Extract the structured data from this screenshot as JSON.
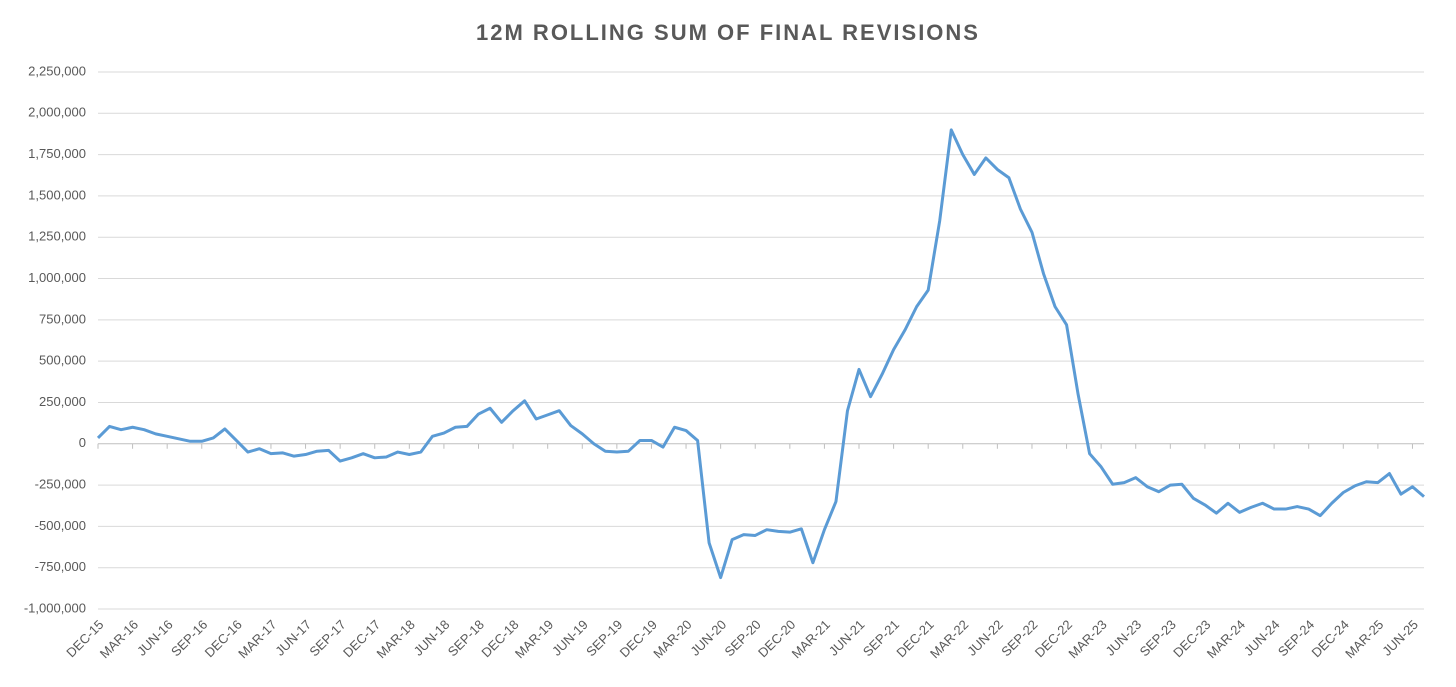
{
  "chart_data": {
    "type": "line",
    "title": "12M ROLLING SUM OF FINAL REVISIONS",
    "categories": [
      "DEC-15",
      null,
      null,
      "MAR-16",
      null,
      null,
      "JUN-16",
      null,
      null,
      "SEP-16",
      null,
      null,
      "DEC-16",
      null,
      null,
      "MAR-17",
      null,
      null,
      "JUN-17",
      null,
      null,
      "SEP-17",
      null,
      null,
      "DEC-17",
      null,
      null,
      "MAR-18",
      null,
      null,
      "JUN-18",
      null,
      null,
      "SEP-18",
      null,
      null,
      "DEC-18",
      null,
      null,
      "MAR-19",
      null,
      null,
      "JUN-19",
      null,
      null,
      "SEP-19",
      null,
      null,
      "DEC-19",
      null,
      null,
      "MAR-20",
      null,
      null,
      "JUN-20",
      null,
      null,
      "SEP-20",
      null,
      null,
      "DEC-20",
      null,
      null,
      "MAR-21",
      null,
      null,
      "JUN-21",
      null,
      null,
      "SEP-21",
      null,
      null,
      "DEC-21",
      null,
      null,
      "MAR-22",
      null,
      null,
      "JUN-22",
      null,
      null,
      "SEP-22",
      null,
      null,
      "DEC-22",
      null,
      null,
      "MAR-23",
      null,
      null,
      "JUN-23",
      null,
      null,
      "SEP-23",
      null,
      null,
      "DEC-23",
      null,
      null,
      "MAR-24",
      null,
      null,
      "JUN-24",
      null,
      null,
      "SEP-24",
      null,
      null,
      "DEC-24",
      null,
      null,
      "MAR-25",
      null,
      null,
      "JUN-25",
      null
    ],
    "values": [
      35000,
      105000,
      85000,
      100000,
      85000,
      60000,
      45000,
      30000,
      15000,
      15000,
      35000,
      90000,
      20000,
      -50000,
      -30000,
      -60000,
      -55000,
      -75000,
      -65000,
      -45000,
      -40000,
      -105000,
      -85000,
      -60000,
      -85000,
      -80000,
      -50000,
      -65000,
      -50000,
      45000,
      65000,
      100000,
      105000,
      180000,
      215000,
      130000,
      200000,
      260000,
      150000,
      175000,
      200000,
      110000,
      60000,
      0,
      -45000,
      -50000,
      -45000,
      20000,
      20000,
      -20000,
      100000,
      80000,
      20000,
      -600000,
      -810000,
      -580000,
      -550000,
      -555000,
      -520000,
      -530000,
      -535000,
      -515000,
      -720000,
      -520000,
      -350000,
      200000,
      450000,
      285000,
      420000,
      570000,
      690000,
      830000,
      930000,
      1350000,
      1900000,
      1750000,
      1630000,
      1730000,
      1660000,
      1610000,
      1420000,
      1280000,
      1030000,
      830000,
      720000,
      300000,
      -60000,
      -140000,
      -245000,
      -235000,
      -205000,
      -260000,
      -290000,
      -250000,
      -245000,
      -330000,
      -370000,
      -420000,
      -360000,
      -415000,
      -385000,
      -360000,
      -395000,
      -395000,
      -380000,
      -395000,
      -435000,
      -360000,
      -295000,
      -255000,
      -230000,
      -235000,
      -180000,
      -305000,
      -260000,
      -320000
    ],
    "color": "#5b9bd5",
    "ylim": [
      -1000000,
      2250000
    ],
    "yticks": [
      {
        "value": -1000000,
        "label": "-1,000,000"
      },
      {
        "value": -750000,
        "label": "-750,000"
      },
      {
        "value": -500000,
        "label": "-500,000"
      },
      {
        "value": -250000,
        "label": "-250,000"
      },
      0,
      {
        "value": 250000,
        "label": "250,000"
      },
      {
        "value": 500000,
        "label": "500,000"
      },
      {
        "value": 750000,
        "label": "750,000"
      },
      {
        "value": 1000000,
        "label": "1,000,000"
      },
      {
        "value": 1250000,
        "label": "1,250,000"
      },
      {
        "value": 1500000,
        "label": "1,500,000"
      },
      {
        "value": 1750000,
        "label": "1,750,000"
      },
      {
        "value": 2000000,
        "label": "2,000,000"
      },
      {
        "value": 2250000,
        "label": "2,250,000"
      }
    ],
    "grid": true
  }
}
